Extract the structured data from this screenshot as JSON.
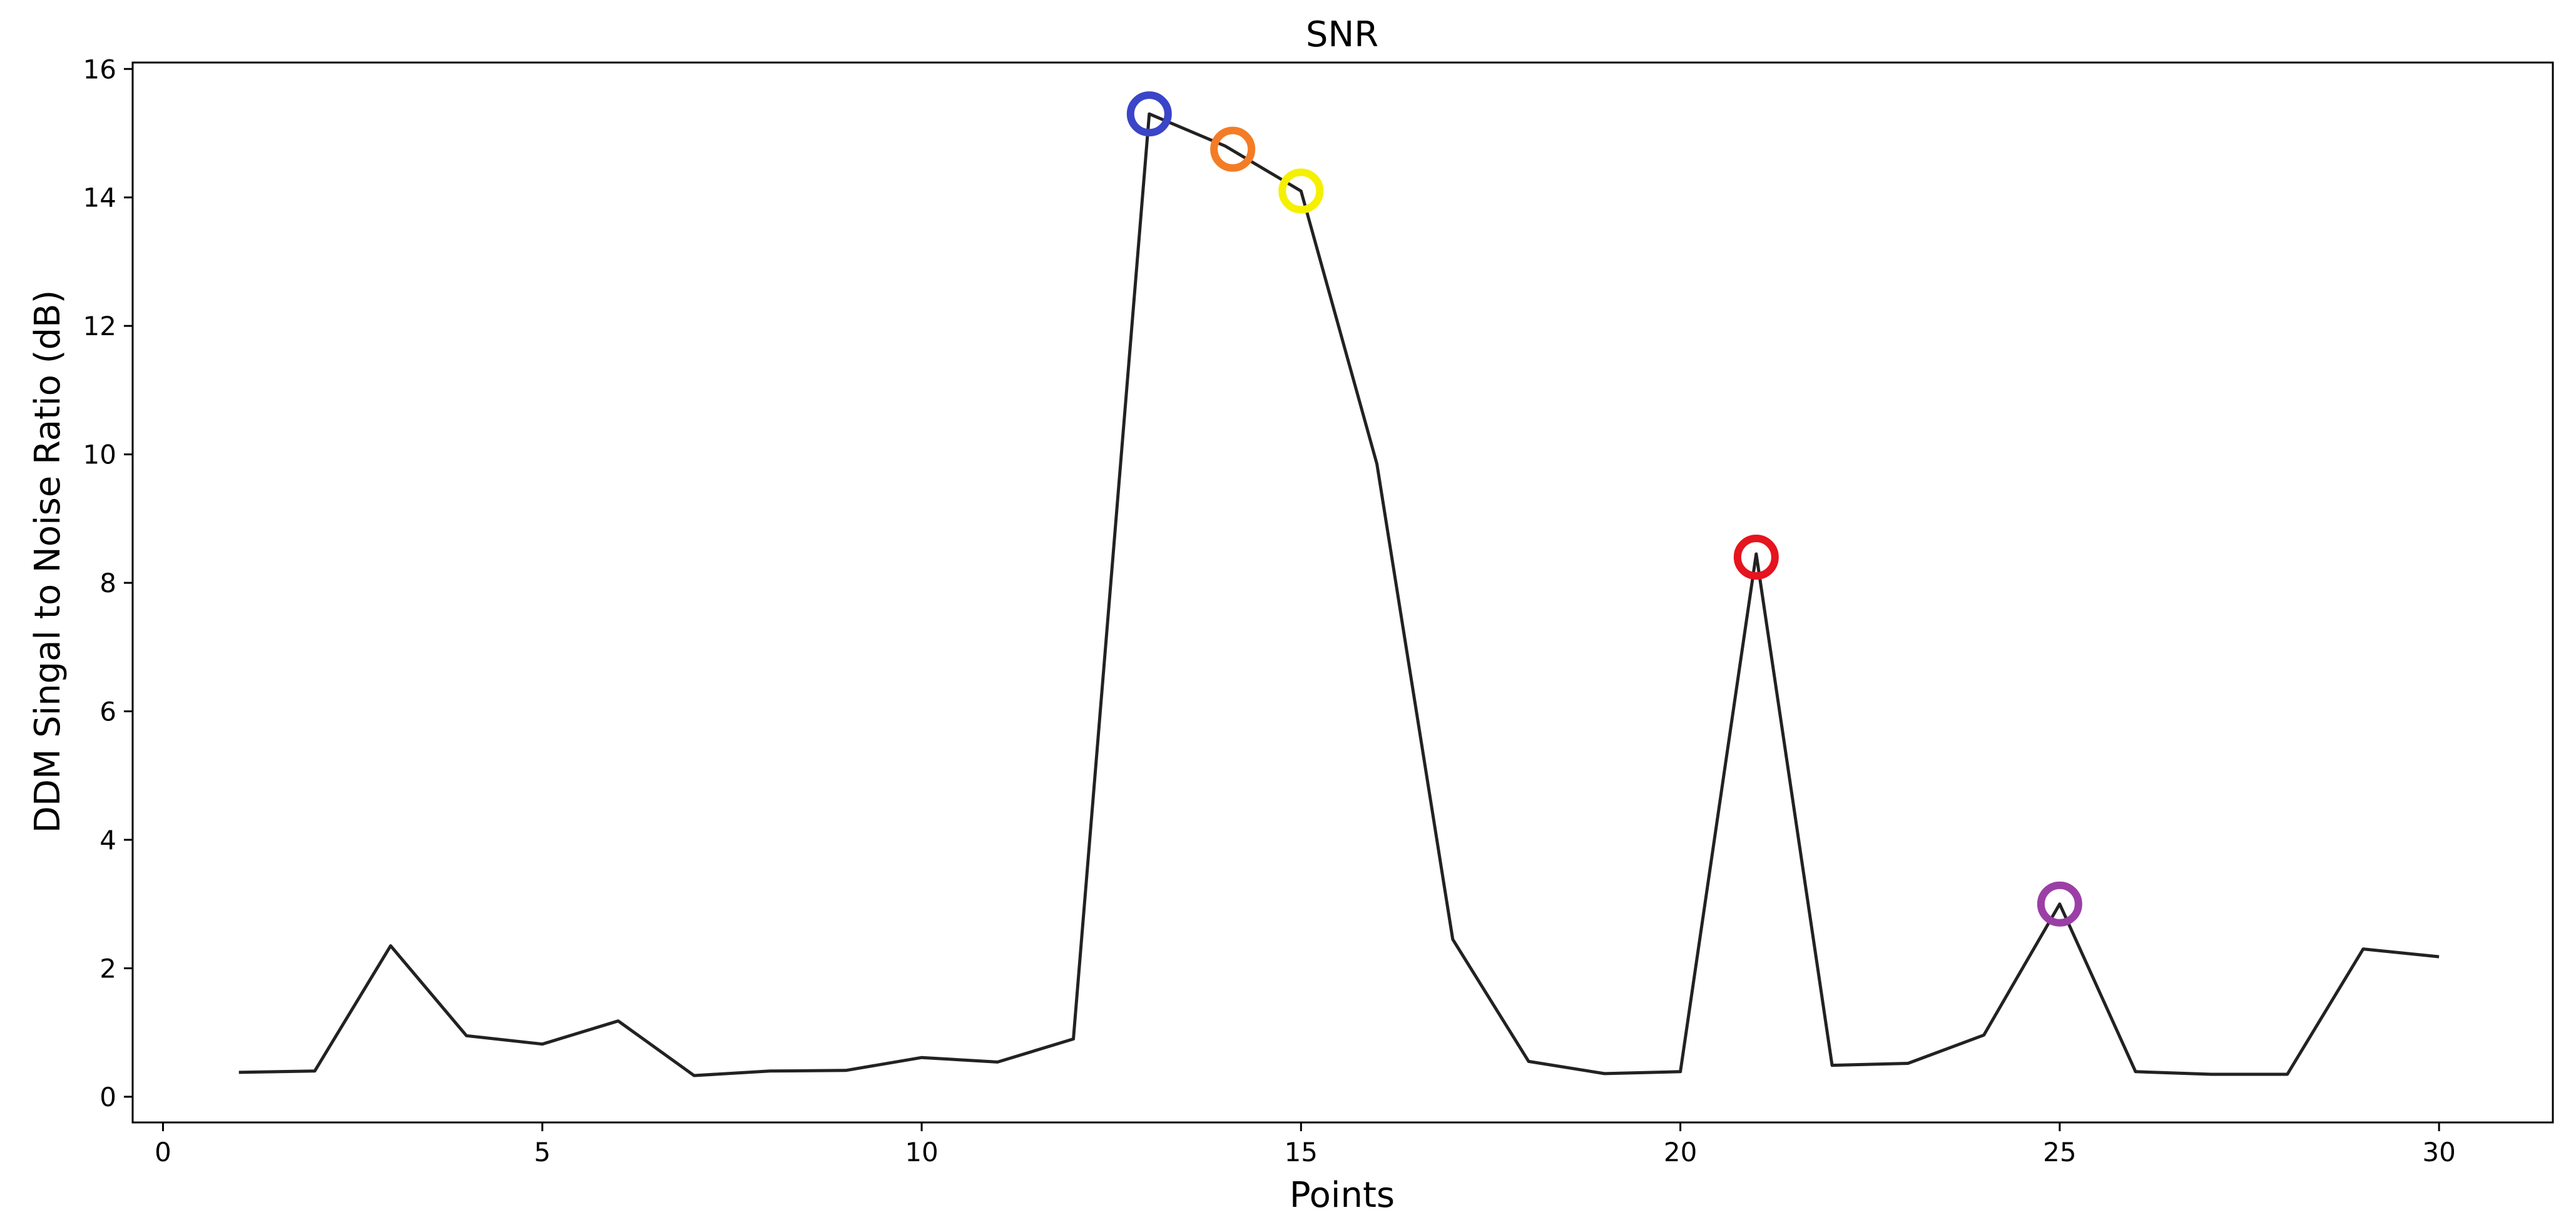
{
  "chart_data": {
    "type": "line",
    "title": "SNR",
    "xlabel": "Points",
    "ylabel": "DDM Singal to Noise Ratio (dB)",
    "xlim": [
      -0.4,
      31.5
    ],
    "ylim": [
      -0.4,
      16.1
    ],
    "xticks": [
      0,
      5,
      10,
      15,
      20,
      25,
      30
    ],
    "yticks": [
      0,
      2,
      4,
      6,
      8,
      10,
      12,
      14,
      16
    ],
    "grid": false,
    "series": [
      {
        "color": "#222222",
        "x": [
          1,
          2,
          3,
          4,
          5,
          6,
          7,
          8,
          9,
          10,
          11,
          12,
          13,
          14,
          15,
          16,
          17,
          18,
          19,
          20,
          21,
          22,
          23,
          24,
          25,
          26,
          27,
          28,
          29,
          30
        ],
        "y": [
          0.38,
          0.4,
          2.35,
          0.95,
          0.82,
          1.18,
          0.33,
          0.4,
          0.41,
          0.61,
          0.54,
          0.9,
          15.3,
          14.8,
          14.1,
          9.85,
          2.45,
          0.55,
          0.36,
          0.39,
          8.45,
          0.49,
          0.52,
          0.96,
          3.0,
          0.39,
          0.35,
          0.35,
          2.3,
          2.18
        ]
      }
    ],
    "markers": [
      {
        "x": 13.0,
        "y": 15.3,
        "color": "#3a45c8"
      },
      {
        "x": 14.1,
        "y": 14.75,
        "color": "#f47c26"
      },
      {
        "x": 15.0,
        "y": 14.1,
        "color": "#f5f000"
      },
      {
        "x": 21.0,
        "y": 8.4,
        "color": "#e5141f"
      },
      {
        "x": 25.0,
        "y": 3.0,
        "color": "#9b3fa6"
      }
    ]
  }
}
